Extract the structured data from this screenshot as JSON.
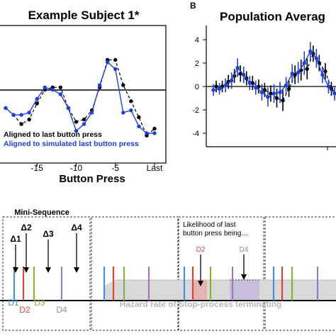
{
  "chart_data": [
    {
      "type": "line",
      "title": "Example Subject 1*",
      "xlabel": "Button Press",
      "ylabel": "",
      "x_tick_labels": [
        "-15",
        "-10",
        "-5",
        "Last"
      ],
      "x": [
        -19,
        -18,
        -17,
        -16,
        -15,
        -14,
        -13,
        -12,
        -11,
        -10,
        -9,
        -8,
        -7,
        -6,
        -5,
        -4,
        -3,
        -2,
        -1,
        0
      ],
      "ylim": [
        -1.2,
        1.8
      ],
      "series": [
        {
          "name": "Aligned to last button press",
          "color": "#000000",
          "values": [
            0.0,
            -0.15,
            -0.35,
            -0.25,
            0.1,
            0.4,
            0.45,
            0.45,
            0.0,
            -0.3,
            -0.25,
            -0.05,
            0.45,
            1.05,
            1.05,
            0.5,
            0.15,
            -0.2,
            -0.6,
            -0.45
          ]
        },
        {
          "name": "Aligned to simulated last button press",
          "color": "#1f3fd6",
          "values": [
            0.0,
            -0.15,
            -0.15,
            -0.1,
            0.2,
            0.45,
            0.4,
            0.3,
            0.0,
            -0.5,
            -0.35,
            -0.1,
            0.5,
            1.0,
            0.85,
            -0.1,
            -0.05,
            -0.4,
            -0.55,
            -0.55
          ]
        }
      ]
    },
    {
      "type": "line",
      "panel_label": "B",
      "title": "Population Averag",
      "y_ticks": [
        "4",
        "2",
        "0",
        "-2",
        "-4"
      ],
      "ylim": [
        -6,
        6
      ],
      "x": [
        -19,
        -18,
        -17,
        -16,
        -15,
        -14,
        -13,
        -12,
        -11,
        -10,
        -9,
        -8,
        -7,
        -6,
        -5,
        -4,
        -3,
        -2,
        -1,
        0,
        1
      ],
      "series": [
        {
          "color": "#000000",
          "values": [
            0.0,
            0.0,
            0.4,
            0.9,
            1.1,
            0.7,
            0.3,
            0.0,
            -0.3,
            -0.6,
            -1.0,
            -1.2,
            -0.2,
            1.0,
            1.4,
            1.5,
            2.8,
            2.0,
            1.3,
            -0.2,
            -0.6
          ],
          "errors": [
            0.5,
            0.5,
            0.6,
            0.6,
            0.7,
            0.6,
            0.6,
            0.6,
            0.6,
            0.7,
            0.8,
            0.9,
            0.7,
            0.8,
            0.9,
            0.9,
            0.7,
            0.7,
            0.7,
            0.6,
            0.6
          ]
        },
        {
          "color": "#1f3fd6",
          "values": [
            -0.3,
            -0.2,
            0.1,
            0.5,
            1.6,
            1.0,
            0.3,
            -0.1,
            -0.5,
            -0.9,
            -0.6,
            -0.5,
            0.1,
            1.1,
            1.2,
            2.0,
            3.0,
            2.4,
            1.0,
            0.0,
            -0.6
          ],
          "errors": [
            0.5,
            0.5,
            0.6,
            0.7,
            0.8,
            0.7,
            0.6,
            0.6,
            0.7,
            0.8,
            0.8,
            0.9,
            0.7,
            0.8,
            0.9,
            1.0,
            0.8,
            0.8,
            0.7,
            0.6,
            0.6
          ]
        }
      ]
    }
  ],
  "diagram": {
    "mini_sequence_label": "Mini-Sequence",
    "deltas": [
      "Δ1",
      "Δ2",
      "Δ3",
      "Δ4"
    ],
    "press_labels": [
      "D1",
      "D2",
      "D3",
      "D4"
    ],
    "likelihood_text_line1": "Likelihood of last",
    "likelihood_text_line2": "button press being…",
    "likelihood_labels": [
      "D2",
      "D4"
    ],
    "hazard_label": "Hazard rate of Stop-process terminating",
    "colors": {
      "d1": "#4a8fd8",
      "d2": "#d2483e",
      "d3": "#8ab23a",
      "d4": "#9b7dbf"
    }
  }
}
